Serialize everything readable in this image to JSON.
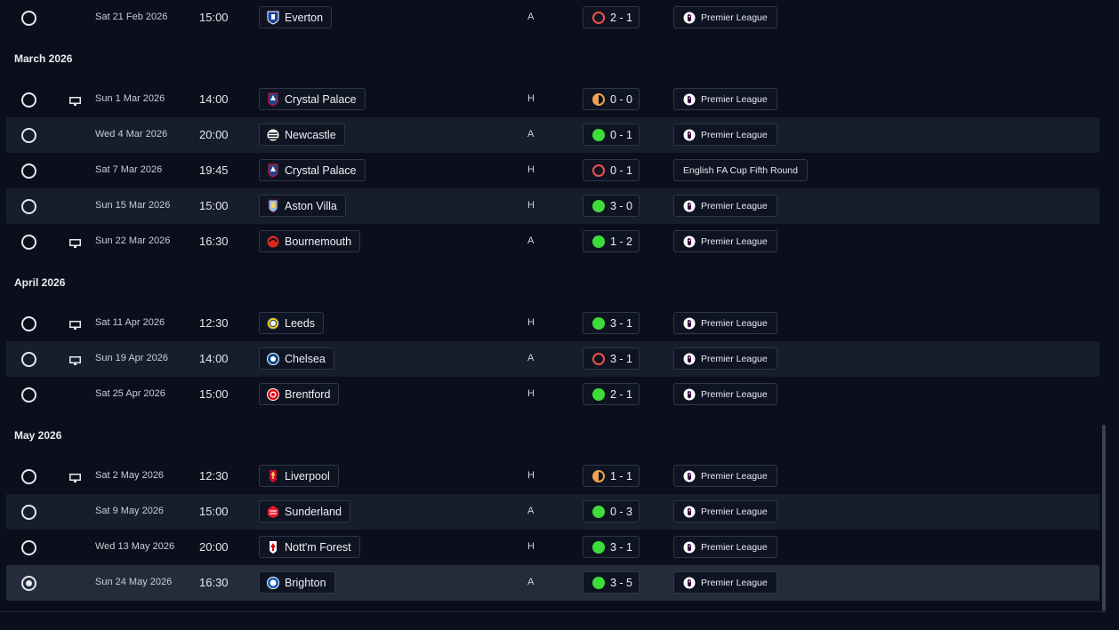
{
  "colors": {
    "win": "#3ddc3a",
    "loss": "#f0504a",
    "draw": "#f0a050",
    "background": "#0b0f1c",
    "row_alt": "#161d2b",
    "row_selected": "#242c3c"
  },
  "sections": [
    {
      "month": "",
      "fixtures": [
        {
          "date": "Sat 21 Feb 2026",
          "time": "15:00",
          "team": "Everton",
          "crest": "everton",
          "venue": "A",
          "score": "2 - 1",
          "outcome": "L",
          "competition": "Premier League",
          "comp_icon": "premier-league",
          "tv": false
        }
      ]
    },
    {
      "month": "March 2026",
      "fixtures": [
        {
          "date": "Sun 1 Mar 2026",
          "time": "14:00",
          "team": "Crystal Palace",
          "crest": "crystal-palace",
          "venue": "H",
          "score": "0 - 0",
          "outcome": "D",
          "competition": "Premier League",
          "comp_icon": "premier-league",
          "tv": true
        },
        {
          "date": "Wed 4 Mar 2026",
          "time": "20:00",
          "team": "Newcastle",
          "crest": "newcastle",
          "venue": "A",
          "score": "0 - 1",
          "outcome": "W",
          "competition": "Premier League",
          "comp_icon": "premier-league",
          "tv": false
        },
        {
          "date": "Sat 7 Mar 2026",
          "time": "19:45",
          "team": "Crystal Palace",
          "crest": "crystal-palace",
          "venue": "H",
          "score": "0 - 1",
          "outcome": "L",
          "competition": "English FA Cup Fifth Round",
          "comp_icon": "",
          "tv": false
        },
        {
          "date": "Sun 15 Mar 2026",
          "time": "15:00",
          "team": "Aston Villa",
          "crest": "aston-villa",
          "venue": "H",
          "score": "3 - 0",
          "outcome": "W",
          "competition": "Premier League",
          "comp_icon": "premier-league",
          "tv": false
        },
        {
          "date": "Sun 22 Mar 2026",
          "time": "16:30",
          "team": "Bournemouth",
          "crest": "bournemouth",
          "venue": "A",
          "score": "1 - 2",
          "outcome": "W",
          "competition": "Premier League",
          "comp_icon": "premier-league",
          "tv": true
        }
      ]
    },
    {
      "month": "April 2026",
      "fixtures": [
        {
          "date": "Sat 11 Apr 2026",
          "time": "12:30",
          "team": "Leeds",
          "crest": "leeds",
          "venue": "H",
          "score": "3 - 1",
          "outcome": "W",
          "competition": "Premier League",
          "comp_icon": "premier-league",
          "tv": true
        },
        {
          "date": "Sun 19 Apr 2026",
          "time": "14:00",
          "team": "Chelsea",
          "crest": "chelsea",
          "venue": "A",
          "score": "3 - 1",
          "outcome": "L",
          "competition": "Premier League",
          "comp_icon": "premier-league",
          "tv": true
        },
        {
          "date": "Sat 25 Apr 2026",
          "time": "15:00",
          "team": "Brentford",
          "crest": "brentford",
          "venue": "H",
          "score": "2 - 1",
          "outcome": "W",
          "competition": "Premier League",
          "comp_icon": "premier-league",
          "tv": false
        }
      ]
    },
    {
      "month": "May 2026",
      "fixtures": [
        {
          "date": "Sat 2 May 2026",
          "time": "12:30",
          "team": "Liverpool",
          "crest": "liverpool",
          "venue": "H",
          "score": "1 - 1",
          "outcome": "D",
          "competition": "Premier League",
          "comp_icon": "premier-league",
          "tv": true
        },
        {
          "date": "Sat 9 May 2026",
          "time": "15:00",
          "team": "Sunderland",
          "crest": "sunderland",
          "venue": "A",
          "score": "0 - 3",
          "outcome": "W",
          "competition": "Premier League",
          "comp_icon": "premier-league",
          "tv": false
        },
        {
          "date": "Wed 13 May 2026",
          "time": "20:00",
          "team": "Nott'm Forest",
          "crest": "nottm-forest",
          "venue": "H",
          "score": "3 - 1",
          "outcome": "W",
          "competition": "Premier League",
          "comp_icon": "premier-league",
          "tv": false
        },
        {
          "date": "Sun 24 May 2026",
          "time": "16:30",
          "team": "Brighton",
          "crest": "brighton",
          "venue": "A",
          "score": "3 - 5",
          "outcome": "W",
          "competition": "Premier League",
          "comp_icon": "premier-league",
          "tv": false,
          "selected": true
        }
      ]
    }
  ]
}
